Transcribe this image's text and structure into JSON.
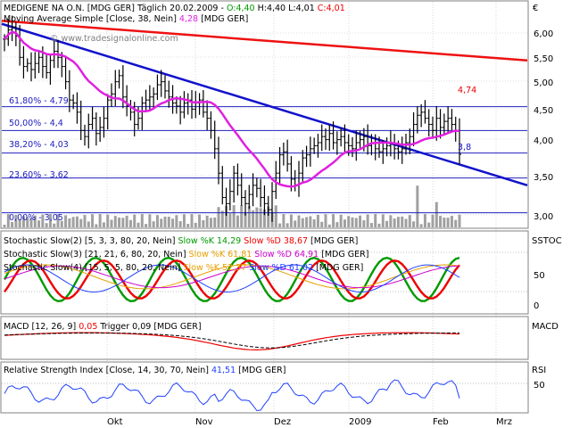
{
  "header": {
    "title_prefix": "MEDIGENE NA O.N. [MDG GER]  Täglich 20.02.2009 - ",
    "open": "O:4,40",
    "high": "H:4,40",
    "low": "L:4,01",
    "close": "C:4,01",
    "currency": "€"
  },
  "watermark": "© www.tradesignalonline.com",
  "colors": {
    "price_bar": "#000000",
    "volume": "#a0a0a0",
    "ma": "#e020e0",
    "trend_red": "#ee1111",
    "trend_blue": "#1111cc",
    "fib_line": "#2020c0",
    "green": "#009900",
    "red": "#ee0000",
    "grid": "#c0c0c0"
  },
  "legend": {
    "ma_label": "Moving Average Simple [Close, 38, Nein]",
    "ma_value": "4,28",
    "ma_suffix": "[MDG GER]"
  },
  "fib_labels": {
    "l618": "61,80% - 4,79",
    "l500": "50,00% - 4,4",
    "l382": "38,20% - 4,03",
    "l236": "23,60% - 3,62",
    "l000": "0,00% - 3,05"
  },
  "annotations": {
    "hi": "4,74",
    "lo": "3,8"
  },
  "stoch": {
    "row1": "Stochastic Slow(2) [5, 3, 3, 80, 20, Nein]",
    "row1_k": "Slow %K 14,29",
    "row1_d": "Slow %D 38,67",
    "row1_s": "[MDG GER]",
    "row2": "Stochastic Slow(3) [21, 21, 6, 80, 20, Nein]",
    "row2_k": "Slow %K 61,81",
    "row2_d": "Slow %D 64,91",
    "row2_s": "[MDG GER]",
    "row3": "Stochastic Slow(4) [15, 5, 5, 80, 20, Nein]",
    "row3_k": "Slow %K 52,37",
    "row3_d": "Slow %D 61,02",
    "row3_s": "[MDG GER]",
    "axis_title": "SSTOC",
    "ticks": [
      "50",
      "0"
    ]
  },
  "macd": {
    "label": "MACD [12, 26, 9]",
    "value": "0,05",
    "trigger": "Trigger 0,09",
    "suffix": "[MDG GER]",
    "axis_title": "MACD"
  },
  "rsi": {
    "label": "Relative Strength Index [Close, 14, 30, 70, Nein]",
    "value": "41,51",
    "suffix": "[MDG GER]",
    "axis_title": "RSI",
    "ticks": [
      "50"
    ]
  },
  "chart_data": {
    "type": "line",
    "title": "MEDIGENE NA O.N. [MDG GER]",
    "price_axis": {
      "ticks": [
        "6,00",
        "5,50",
        "5,00",
        "4,50",
        "4,00",
        "3,50",
        "3,00"
      ],
      "ylim": [
        2.85,
        6.3
      ]
    },
    "x_axis": {
      "ticks": [
        "Okt",
        "Nov",
        "Dez",
        "2009",
        "Feb",
        "Mrz"
      ]
    },
    "close": [
      5.9,
      6.05,
      6.1,
      5.95,
      5.6,
      5.45,
      5.5,
      5.4,
      5.5,
      5.6,
      5.45,
      5.35,
      5.55,
      5.7,
      5.6,
      5.45,
      5.2,
      4.9,
      4.85,
      4.7,
      4.4,
      4.3,
      4.5,
      4.6,
      4.35,
      4.45,
      4.6,
      4.9,
      5.0,
      5.2,
      5.3,
      4.95,
      4.8,
      4.7,
      4.5,
      4.6,
      4.85,
      4.9,
      4.95,
      5.0,
      5.15,
      5.2,
      5.05,
      4.95,
      4.85,
      4.8,
      4.7,
      4.85,
      4.9,
      4.75,
      4.85,
      4.9,
      4.7,
      4.6,
      4.4,
      4.1,
      3.7,
      3.3,
      3.2,
      3.4,
      3.7,
      3.5,
      3.3,
      3.2,
      3.35,
      3.5,
      3.45,
      3.3,
      3.2,
      3.1,
      3.4,
      3.7,
      4.0,
      4.05,
      3.85,
      3.6,
      3.5,
      3.7,
      3.95,
      4.0,
      4.1,
      4.15,
      4.2,
      4.3,
      4.25,
      4.35,
      4.2,
      4.25,
      4.3,
      4.2,
      4.15,
      4.1,
      4.2,
      4.25,
      4.3,
      4.15,
      4.2,
      4.1,
      4.05,
      4.1,
      4.15,
      4.2,
      4.1,
      4.05,
      4.1,
      4.2,
      4.3,
      4.5,
      4.65,
      4.7,
      4.6,
      4.5,
      4.4,
      4.6,
      4.45,
      4.55,
      4.6,
      4.5,
      4.4,
      4.01
    ],
    "series": [
      {
        "name": "Moving Average Simple [Close, 38, Nein]",
        "last": 4.28
      },
      {
        "name": "Volume"
      }
    ],
    "fibonacci_levels": [
      {
        "label": "61,80% - 4,79",
        "value": 4.79
      },
      {
        "label": "50,00% - 4,4",
        "value": 4.4
      },
      {
        "label": "38,20% - 4,03",
        "value": 4.03
      },
      {
        "label": "23,60% - 3,62",
        "value": 3.62
      },
      {
        "label": "0,00% - 3,05",
        "value": 3.05
      }
    ],
    "trendlines": [
      {
        "color": "red",
        "from": 6.2,
        "to": 5.55
      },
      {
        "color": "blue",
        "from": 6.15,
        "to": 3.5
      }
    ],
    "annotations": [
      {
        "text": "4,74",
        "value": 4.74
      },
      {
        "text": "3,8",
        "value": 3.8
      }
    ],
    "stochastic": {
      "ylim": [
        0,
        100
      ],
      "ticks": [
        50,
        0
      ],
      "levels": [
        80,
        20
      ]
    },
    "macd": {
      "value": 0.05,
      "trigger": 0.09
    },
    "rsi": {
      "value": 41.51,
      "ticks": [
        50
      ],
      "levels": [
        30,
        70
      ]
    }
  }
}
